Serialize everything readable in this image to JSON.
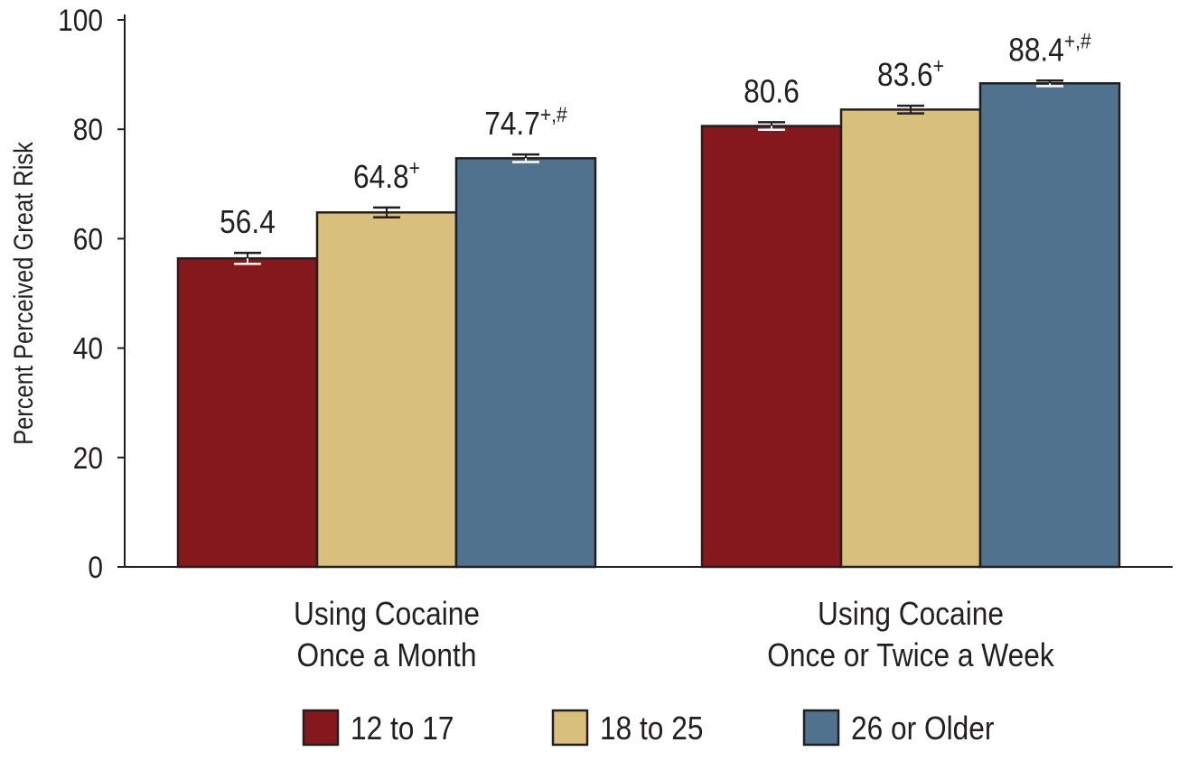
{
  "chart_data": {
    "type": "bar",
    "ylabel": "Percent Perceived Great Risk",
    "ylim": [
      0,
      100
    ],
    "yticks": [
      0,
      20,
      40,
      60,
      80,
      100
    ],
    "grid": false,
    "legend_placement": "bottom",
    "categories": [
      [
        "Using Cocaine",
        "Once a Month"
      ],
      [
        "Using Cocaine",
        "Once or Twice a Week"
      ]
    ],
    "series": [
      {
        "name": "12 to 17",
        "color": "#85181c",
        "values": [
          56.4,
          80.6
        ],
        "errors": [
          1.0,
          0.7
        ],
        "labels": [
          "56.4",
          "80.6"
        ],
        "notes": [
          "",
          ""
        ]
      },
      {
        "name": "18 to 25",
        "color": "#d8bf7b",
        "values": [
          64.8,
          83.6
        ],
        "errors": [
          0.9,
          0.7
        ],
        "labels": [
          "64.8",
          "83.6"
        ],
        "notes": [
          "+",
          "+"
        ]
      },
      {
        "name": "26 or Older",
        "color": "#51728e",
        "values": [
          74.7,
          88.4
        ],
        "errors": [
          0.7,
          0.5
        ],
        "labels": [
          "74.7",
          "88.4"
        ],
        "notes": [
          "+,#",
          "+,#"
        ]
      }
    ]
  }
}
